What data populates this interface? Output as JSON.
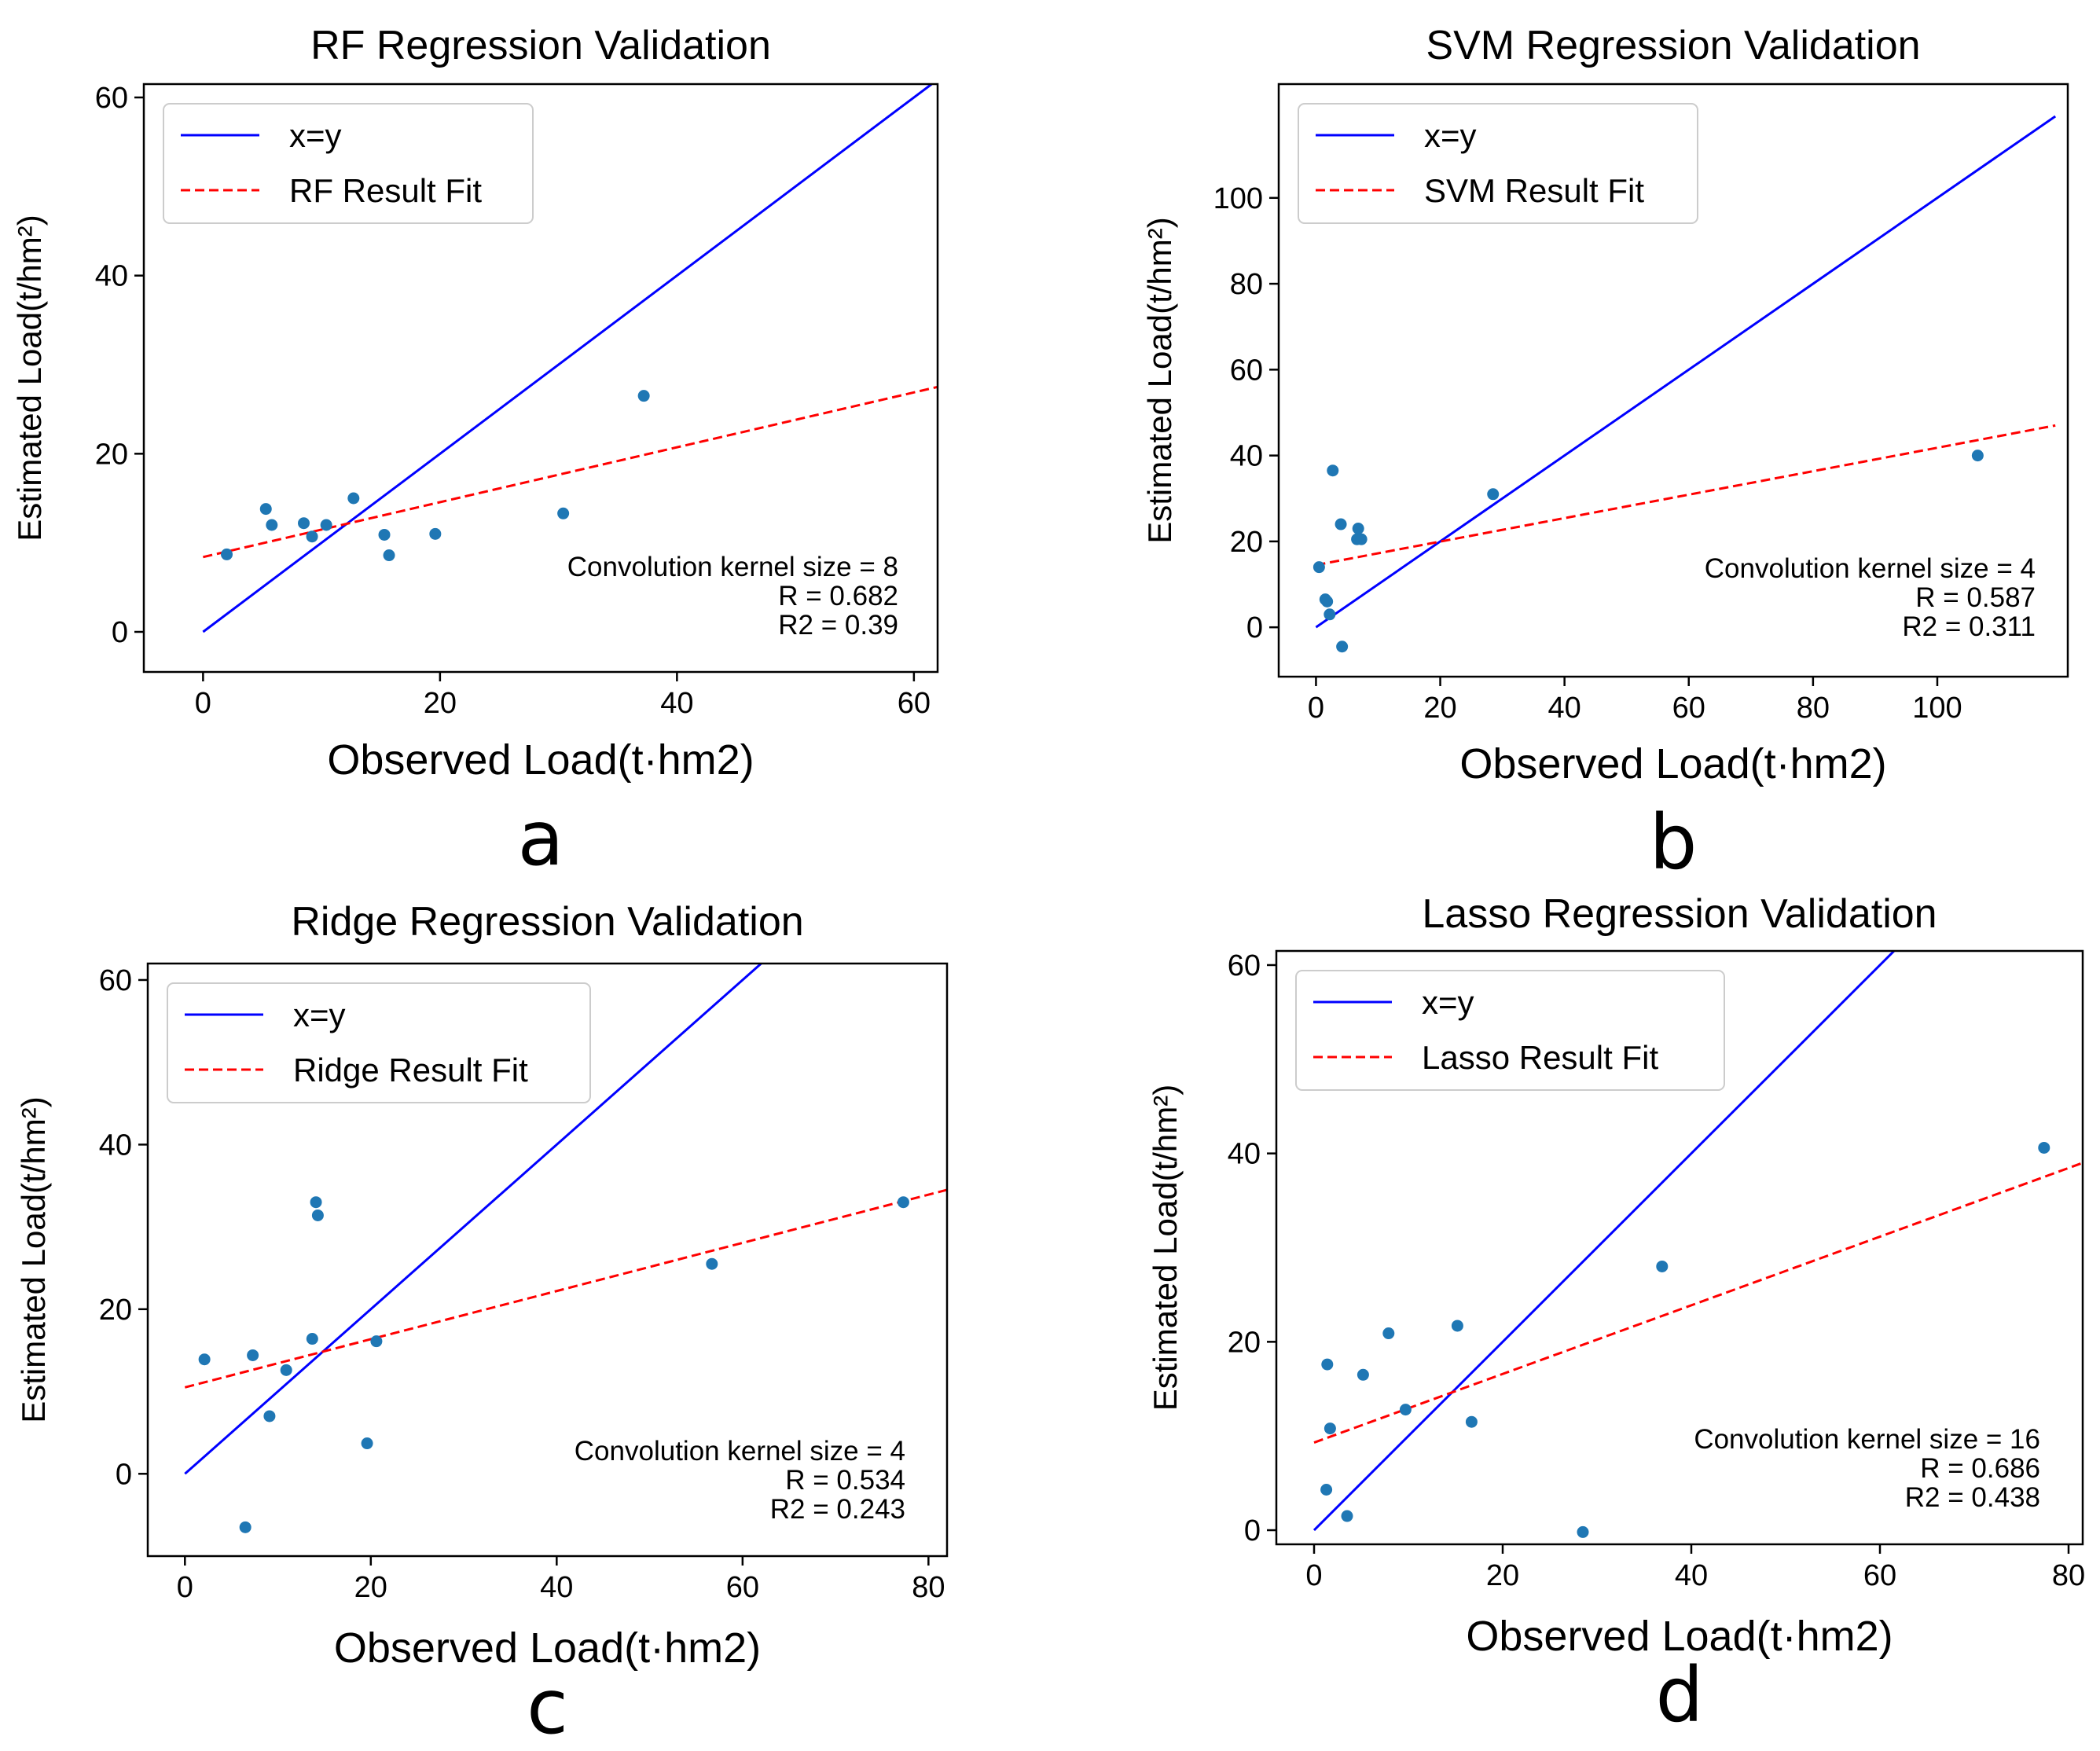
{
  "chart_data": [
    {
      "type": "scatter",
      "panel_letter": "a",
      "title": "RF Regression Validation",
      "xlabel": "Observed Load(t·hm2)",
      "ylabel": "Estimated Load(t/hm²)",
      "xlim": [
        -5,
        62
      ],
      "ylim": [
        -4.5,
        61.5
      ],
      "xticks": [
        0,
        20,
        40,
        60
      ],
      "yticks": [
        0,
        20,
        40,
        60
      ],
      "legend_position": "top-left",
      "series": [
        {
          "name": "x=y",
          "kind": "line",
          "color": "#0000ff",
          "dash": "solid",
          "x": [
            0,
            61.5
          ],
          "y": [
            0,
            61.5
          ]
        },
        {
          "name": "RF Result Fit",
          "kind": "line",
          "color": "#ff0000",
          "dash": "dashed",
          "x": [
            0,
            62
          ],
          "y": [
            8.4,
            27.5
          ]
        },
        {
          "name": "observations",
          "kind": "points",
          "color": "#1f77b4",
          "x": [
            2.0,
            5.3,
            5.8,
            8.5,
            9.2,
            10.4,
            12.7,
            15.3,
            15.7,
            19.6,
            30.4,
            37.2
          ],
          "y": [
            8.7,
            13.8,
            12.0,
            12.2,
            10.7,
            12.0,
            15.0,
            10.9,
            8.6,
            11.0,
            13.3,
            26.5
          ]
        }
      ],
      "annotation": [
        "Convolution kernel size = 8",
        "R = 0.682",
        "R2 = 0.39"
      ]
    },
    {
      "type": "scatter",
      "panel_letter": "b",
      "title": "SVM Regression Validation",
      "xlabel": "Observed Load(t·hm2)",
      "ylabel": "Estimated Load(t/hm²)",
      "xlim": [
        -6,
        121
      ],
      "ylim": [
        -11.5,
        126.5
      ],
      "xticks": [
        0,
        20,
        40,
        60,
        80,
        100
      ],
      "yticks": [
        0,
        20,
        40,
        60,
        80,
        100
      ],
      "legend_position": "top-left",
      "series": [
        {
          "name": "x=y",
          "kind": "line",
          "color": "#0000ff",
          "dash": "solid",
          "x": [
            0,
            119
          ],
          "y": [
            0,
            119
          ]
        },
        {
          "name": "SVM Result Fit",
          "kind": "line",
          "color": "#ff0000",
          "dash": "dashed",
          "x": [
            0,
            119
          ],
          "y": [
            14.5,
            47
          ]
        },
        {
          "name": "observations",
          "kind": "points",
          "color": "#1f77b4",
          "x": [
            0.5,
            1.5,
            1.8,
            2.2,
            2.7,
            4.0,
            4.2,
            6.6,
            6.8,
            7.3,
            28.5,
            106.5
          ],
          "y": [
            14.0,
            6.5,
            6.0,
            3.0,
            36.5,
            24.0,
            -4.5,
            20.5,
            23.0,
            20.5,
            31.0,
            40.0
          ]
        }
      ],
      "annotation": [
        "Convolution kernel size = 4",
        "R = 0.587",
        "R2 = 0.311"
      ]
    },
    {
      "type": "scatter",
      "panel_letter": "c",
      "title": "Ridge Regression Validation",
      "xlabel": "Observed Load(t·hm2)",
      "ylabel": "Estimated Load(t/hm²)",
      "xlim": [
        -4,
        82
      ],
      "ylim": [
        -10,
        62
      ],
      "xticks": [
        0,
        20,
        40,
        60,
        80
      ],
      "yticks": [
        0,
        20,
        40,
        60
      ],
      "legend_position": "top-left",
      "series": [
        {
          "name": "x=y",
          "kind": "line",
          "color": "#0000ff",
          "dash": "solid",
          "x": [
            0,
            62
          ],
          "y": [
            0,
            62
          ]
        },
        {
          "name": "Ridge Result Fit",
          "kind": "line",
          "color": "#ff0000",
          "dash": "dashed",
          "x": [
            0,
            82
          ],
          "y": [
            10.5,
            34.5
          ]
        },
        {
          "name": "observations",
          "kind": "points",
          "color": "#1f77b4",
          "x": [
            2.1,
            6.5,
            7.3,
            9.1,
            10.9,
            13.7,
            14.1,
            14.3,
            19.6,
            20.6,
            56.7,
            77.3
          ],
          "y": [
            13.9,
            -6.5,
            14.4,
            7.0,
            12.6,
            16.4,
            33.0,
            31.4,
            3.7,
            16.1,
            25.5,
            33.0
          ]
        }
      ],
      "annotation": [
        "Convolution kernel size = 4",
        "R = 0.534",
        "R2 = 0.243"
      ]
    },
    {
      "type": "scatter",
      "panel_letter": "d",
      "title": "Lasso Regression Validation",
      "xlabel": "Observed Load(t·hm2)",
      "ylabel": "Estimated Load(t/hm²)",
      "xlim": [
        -4,
        81.5
      ],
      "ylim": [
        -1.5,
        61.5
      ],
      "xticks": [
        0,
        20,
        40,
        60,
        80
      ],
      "yticks": [
        0,
        20,
        40,
        60
      ],
      "legend_position": "top-left",
      "series": [
        {
          "name": "x=y",
          "kind": "line",
          "color": "#0000ff",
          "dash": "solid",
          "x": [
            0,
            61.5
          ],
          "y": [
            0,
            61.5
          ]
        },
        {
          "name": "Lasso Result Fit",
          "kind": "line",
          "color": "#ff0000",
          "dash": "dashed",
          "x": [
            0,
            81.5
          ],
          "y": [
            9.3,
            39
          ]
        },
        {
          "name": "observations",
          "kind": "points",
          "color": "#1f77b4",
          "x": [
            1.3,
            1.4,
            1.7,
            3.5,
            5.2,
            7.9,
            9.7,
            15.2,
            16.7,
            28.5,
            36.9,
            77.4
          ],
          "y": [
            4.3,
            17.6,
            10.8,
            1.5,
            16.5,
            20.9,
            12.8,
            21.7,
            11.5,
            -0.2,
            28.0,
            40.6
          ]
        }
      ],
      "annotation": [
        "Convolution kernel size = 16",
        "R = 0.686",
        "R2 = 0.438"
      ]
    }
  ]
}
